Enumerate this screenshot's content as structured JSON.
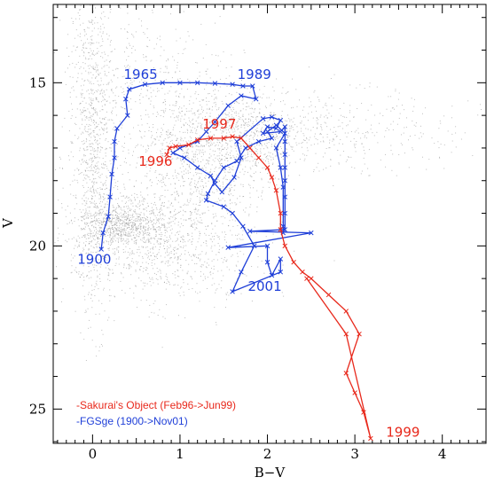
{
  "chart_data": {
    "type": "scatter",
    "title": "",
    "xlabel": "B−V",
    "ylabel": "V",
    "xlim": [
      -0.45,
      4.5
    ],
    "ylim": [
      26.05,
      12.6
    ],
    "y_inverted": true,
    "x_ticks": [
      0,
      1,
      2,
      3,
      4
    ],
    "y_ticks": [
      15,
      20,
      25
    ],
    "background_field": {
      "description": "",
      "color": "#8a8a8a"
    },
    "series": [
      {
        "name": "-FGSge (1900->Nov01)",
        "color": "#1f3fd8",
        "marker": "x",
        "points": [
          [
            0.1,
            20.1
          ],
          [
            0.12,
            19.6
          ],
          [
            0.18,
            19.1
          ],
          [
            0.2,
            18.5
          ],
          [
            0.22,
            17.8
          ],
          [
            0.25,
            17.3
          ],
          [
            0.25,
            16.8
          ],
          [
            0.28,
            16.4
          ],
          [
            0.4,
            16.0
          ],
          [
            0.38,
            15.5
          ],
          [
            0.42,
            15.2
          ],
          [
            0.6,
            15.05
          ],
          [
            0.8,
            15.0
          ],
          [
            1.0,
            15.0
          ],
          [
            1.2,
            15.0
          ],
          [
            1.4,
            15.02
          ],
          [
            1.6,
            15.05
          ],
          [
            1.72,
            15.1
          ],
          [
            1.83,
            15.1
          ],
          [
            1.87,
            15.5
          ],
          [
            1.7,
            15.4
          ],
          [
            1.55,
            15.7
          ],
          [
            1.4,
            16.2
          ],
          [
            1.3,
            16.5
          ],
          [
            1.2,
            16.8
          ],
          [
            1.0,
            17.0
          ],
          [
            0.92,
            17.15
          ],
          [
            1.05,
            17.3
          ],
          [
            1.2,
            17.6
          ],
          [
            1.35,
            17.85
          ],
          [
            1.4,
            18.1
          ],
          [
            1.48,
            18.35
          ],
          [
            1.62,
            17.9
          ],
          [
            1.7,
            17.3
          ],
          [
            1.65,
            16.8
          ],
          [
            1.95,
            16.1
          ],
          [
            2.05,
            16.05
          ],
          [
            2.15,
            16.15
          ],
          [
            2.1,
            16.4
          ],
          [
            2.0,
            16.35
          ],
          [
            1.95,
            16.55
          ],
          [
            2.15,
            16.5
          ],
          [
            2.2,
            16.35
          ],
          [
            2.2,
            16.8
          ],
          [
            2.2,
            17.2
          ],
          [
            2.2,
            17.6
          ],
          [
            2.2,
            18.0
          ],
          [
            2.2,
            18.5
          ],
          [
            2.2,
            19.0
          ],
          [
            2.2,
            19.5
          ],
          [
            1.8,
            19.55
          ],
          [
            2.5,
            19.6
          ],
          [
            1.55,
            20.05
          ],
          [
            2.0,
            20.0
          ],
          [
            2.0,
            20.5
          ],
          [
            2.05,
            20.9
          ],
          [
            2.15,
            20.4
          ],
          [
            2.15,
            20.8
          ],
          [
            1.6,
            21.4
          ],
          [
            1.7,
            20.8
          ],
          [
            1.85,
            20.0
          ],
          [
            1.72,
            19.4
          ],
          [
            1.6,
            19.0
          ],
          [
            1.5,
            18.8
          ],
          [
            1.3,
            18.6
          ],
          [
            1.32,
            18.4
          ],
          [
            1.4,
            18.0
          ],
          [
            1.5,
            17.6
          ],
          [
            1.65,
            17.4
          ],
          [
            1.75,
            17.0
          ],
          [
            1.9,
            16.8
          ],
          [
            2.05,
            16.7
          ],
          [
            2.0,
            16.5
          ],
          [
            2.1,
            16.3
          ],
          [
            2.2,
            16.55
          ],
          [
            2.1,
            17.0
          ],
          [
            2.15,
            17.6
          ],
          [
            2.18,
            18.2
          ],
          [
            2.18,
            19.4
          ],
          [
            2.18,
            19.6
          ]
        ]
      },
      {
        "name": "-Sakurai's Object (Feb96->Jun99)",
        "color": "#e8291c",
        "marker": "x",
        "points": [
          [
            0.85,
            17.2
          ],
          [
            0.88,
            17.0
          ],
          [
            0.95,
            16.95
          ],
          [
            1.1,
            16.9
          ],
          [
            1.2,
            16.75
          ],
          [
            1.35,
            16.7
          ],
          [
            1.5,
            16.7
          ],
          [
            1.6,
            16.65
          ],
          [
            1.7,
            16.7
          ],
          [
            1.8,
            17.0
          ],
          [
            1.9,
            17.3
          ],
          [
            2.0,
            17.6
          ],
          [
            2.05,
            17.9
          ],
          [
            2.1,
            18.3
          ],
          [
            2.15,
            19.0
          ],
          [
            2.15,
            19.5
          ],
          [
            2.2,
            20.0
          ],
          [
            2.3,
            20.5
          ],
          [
            2.4,
            20.8
          ],
          [
            2.5,
            21.0
          ],
          [
            2.7,
            21.5
          ],
          [
            2.9,
            22.0
          ],
          [
            3.05,
            22.7
          ],
          [
            2.9,
            23.9
          ],
          [
            3.0,
            24.5
          ],
          [
            3.1,
            25.1
          ],
          [
            3.18,
            25.9
          ],
          [
            2.9,
            22.7
          ],
          [
            2.45,
            21.0
          ]
        ]
      }
    ],
    "annotations": [
      {
        "text": "1965",
        "color": "#1f3fd8",
        "x": 0.55,
        "y": 14.88
      },
      {
        "text": "1989",
        "color": "#1f3fd8",
        "x": 1.85,
        "y": 14.88
      },
      {
        "text": "1997",
        "color": "#e8291c",
        "x": 1.45,
        "y": 16.4
      },
      {
        "text": "1996",
        "color": "#e8291c",
        "x": 0.72,
        "y": 17.55
      },
      {
        "text": "1900",
        "color": "#1f3fd8",
        "x": 0.02,
        "y": 20.55
      },
      {
        "text": "2001",
        "color": "#1f3fd8",
        "x": 1.97,
        "y": 21.38
      },
      {
        "text": "1999",
        "color": "#e8291c",
        "x": 3.55,
        "y": 25.85
      }
    ],
    "legend": {
      "placement": "bottom-left",
      "entries": [
        {
          "text": "-Sakurai's Object (Feb96->Jun99)",
          "color": "#e8291c"
        },
        {
          "text": "-FGSge (1900->Nov01)",
          "color": "#1f3fd8"
        }
      ]
    },
    "grid": false
  }
}
